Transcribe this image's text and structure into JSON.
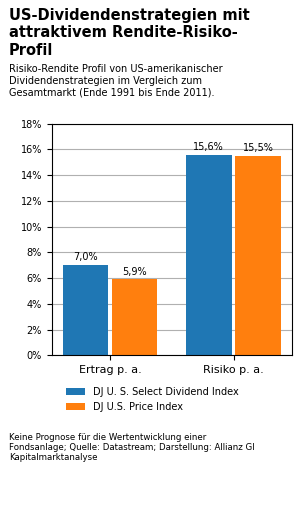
{
  "chart_data": {
    "type": "bar",
    "title": "US-Dividendenstrategien mit\nattraktivem Rendite-Risiko-\nProfil",
    "subtitle": "Risiko-Rendite Profil von US-amerikanischer\nDividendenstrategien im Vergleich zum\nGesamtmarkt (Ende 1991 bis Ende 2011).",
    "annotations": [
      "Keine Prognose für die Wertentwicklung einer\nFondsanlage; Quelle: Datastream; Darstellung: Allianz GI\nKapitalmarktanalyse"
    ],
    "categories": [
      "Ertrag p. a.",
      "Risiko p. a."
    ],
    "series": [
      {
        "name": "DJ U. S. Select Dividend Index",
        "values": [
          7.0,
          15.6
        ],
        "value_labels": [
          "7,0%",
          "15,6%"
        ]
      },
      {
        "name": "DJ U.S. Price Index",
        "values": [
          5.9,
          15.5
        ],
        "value_labels": [
          "5,9%",
          "15,5%"
        ]
      }
    ],
    "data_labels": true,
    "ylim": [
      0,
      18
    ],
    "yticks": [
      {
        "value": 0,
        "label": "0%"
      },
      {
        "value": 2,
        "label": "2%"
      },
      {
        "value": 4,
        "label": "4%"
      },
      {
        "value": 6,
        "label": "6%"
      },
      {
        "value": 8,
        "label": "8%"
      },
      {
        "value": 10,
        "label": "10%"
      },
      {
        "value": 12,
        "label": "12%"
      },
      {
        "value": 14,
        "label": "14%"
      },
      {
        "value": 16,
        "label": "16%"
      },
      {
        "value": 18,
        "label": "18%"
      }
    ],
    "grid": true,
    "legend": "upper center"
  }
}
